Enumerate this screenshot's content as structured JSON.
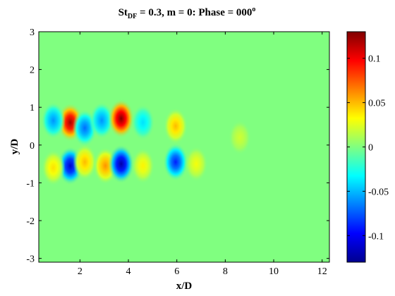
{
  "chart_data": {
    "type": "heatmap",
    "title": {
      "prefix": "St",
      "subscript": "DF",
      "rest": " = 0.3, m = 0: Phase = 000",
      "superscript": "o"
    },
    "xlabel": "x/D",
    "ylabel": "y/D",
    "xlim": [
      0.3,
      12.3
    ],
    "ylim": [
      -3.1,
      3.0
    ],
    "xticks": [
      "2",
      "4",
      "6",
      "8",
      "10",
      "12"
    ],
    "yticks": [
      "3",
      "2",
      "1",
      "0",
      "-1",
      "-2",
      "-3"
    ],
    "background_value": 0.0,
    "colorbar": {
      "colormap": "jet",
      "clim": [
        -0.13,
        0.13
      ],
      "tick_labels": [
        "0.1",
        "0.05",
        "0",
        "-0.05",
        "-0.1"
      ],
      "tick_values": [
        0.1,
        0.05,
        0,
        -0.05,
        -0.1
      ]
    },
    "blobs": [
      {
        "x": 1.6,
        "y": 0.6,
        "value": 0.12
      },
      {
        "x": 1.6,
        "y": -0.55,
        "value": -0.11
      },
      {
        "x": 0.9,
        "y": 0.65,
        "value": -0.06
      },
      {
        "x": 0.9,
        "y": -0.6,
        "value": 0.04
      },
      {
        "x": 2.2,
        "y": 0.45,
        "value": -0.07
      },
      {
        "x": 2.2,
        "y": -0.45,
        "value": 0.05
      },
      {
        "x": 2.9,
        "y": 0.65,
        "value": -0.06
      },
      {
        "x": 3.05,
        "y": -0.55,
        "value": 0.06
      },
      {
        "x": 3.7,
        "y": 0.7,
        "value": 0.13
      },
      {
        "x": 3.7,
        "y": -0.5,
        "value": -0.12
      },
      {
        "x": 4.6,
        "y": 0.6,
        "value": -0.04
      },
      {
        "x": 4.6,
        "y": -0.55,
        "value": 0.035
      },
      {
        "x": 5.95,
        "y": 0.5,
        "value": 0.05
      },
      {
        "x": 5.95,
        "y": -0.45,
        "value": -0.09
      },
      {
        "x": 6.8,
        "y": -0.5,
        "value": 0.03
      },
      {
        "x": 8.6,
        "y": 0.2,
        "value": 0.02
      }
    ]
  }
}
